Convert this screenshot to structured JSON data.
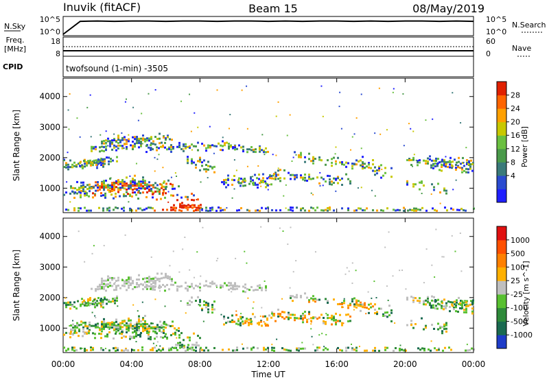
{
  "header": {
    "station": "Inuvik (fitACF)",
    "beam": "Beam 15",
    "date": "08/May/2019"
  },
  "cpid": {
    "label": "CPID",
    "text": "twofsound (1-min) -3505"
  },
  "colors": {
    "power_scale": [
      "#1f1fff",
      "#2a4bd0",
      "#3a7a7a",
      "#4a9a4a",
      "#6ac040",
      "#c8c800",
      "#ffa000",
      "#ff6400",
      "#e02000"
    ],
    "velocity_scale": [
      "#1e3cc8",
      "#1a6a50",
      "#2e8a3a",
      "#58c030",
      "#bfbfbf",
      "#ffb000",
      "#ff8000",
      "#ff5000",
      "#e01010"
    ]
  },
  "chart_data": [
    {
      "type": "line",
      "name": "nsky-panel",
      "ylabel_left": "N.Sky",
      "ylabel_right": "N.Search",
      "left_ticks": [
        "10^5",
        "10^0"
      ],
      "right_ticks": [
        "10^5",
        "10^0"
      ],
      "series": [
        {
          "role": "solid-line",
          "values": [
            0,
            4.3,
            4.4,
            4.3,
            4.4,
            4.4,
            4.3,
            4.4,
            4.4,
            4.3,
            4.4,
            4.4,
            4.3,
            4.4,
            4.3,
            4.4,
            4.4,
            4.3,
            4.4,
            4.3,
            4.4,
            4.4,
            4.3,
            4.4,
            4.3
          ]
        }
      ]
    },
    {
      "type": "line",
      "name": "freq-panel",
      "ylabel_left": "Freq.\n[MHz]",
      "ylabel_right": "Nave",
      "left_ticks": [
        "18",
        "8"
      ],
      "right_ticks": [
        "60",
        "0"
      ],
      "series": [
        {
          "role": "frequency",
          "values": [
            8.5,
            8.5,
            8.5,
            8.5,
            8.5,
            8.5,
            8.5,
            8.5,
            8.5,
            8.5,
            8.5,
            8.5,
            8.5
          ]
        },
        {
          "role": "nave",
          "values": [
            24,
            24,
            24,
            24,
            24,
            24,
            24,
            24,
            24,
            24,
            24,
            24,
            24
          ]
        }
      ]
    },
    {
      "type": "heatmap",
      "name": "power-panel",
      "ylabel": "Slant Range [km]",
      "yticks": [
        "4000",
        "3000",
        "2000",
        "1000"
      ],
      "ylim": [
        200,
        4600
      ],
      "colorbar_label": "Power [dB]",
      "colorbar_ticks": [
        "28",
        "24",
        "20",
        "16",
        "12",
        "8",
        "4"
      ]
    },
    {
      "type": "heatmap",
      "name": "velocity-panel",
      "ylabel": "Slant Range [km]",
      "yticks": [
        "4000",
        "3000",
        "2000",
        "1000"
      ],
      "ylim": [
        200,
        4600
      ],
      "colorbar_label": "Velocity [m s^-1]",
      "colorbar_ticks": [
        "1000",
        "500",
        "100",
        "25",
        "-25",
        "-100",
        "-500",
        "-1000"
      ]
    }
  ],
  "xaxis": {
    "title": "Time UT",
    "ticks": [
      "00:00",
      "04:00",
      "08:00",
      "12:00",
      "16:00",
      "20:00",
      "00:00"
    ]
  }
}
